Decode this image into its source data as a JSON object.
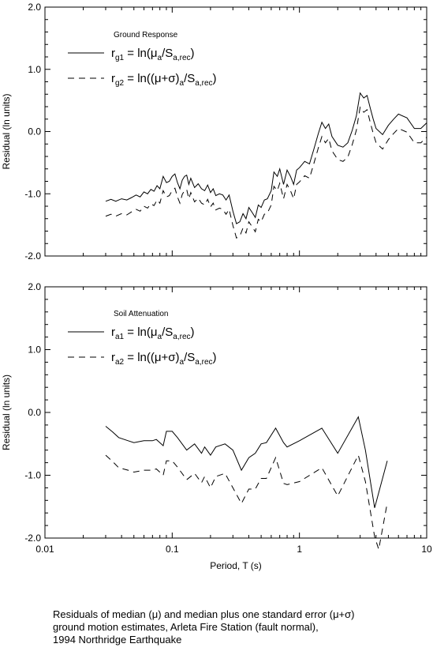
{
  "caption": {
    "line1": "Residuals of median (μ) and median plus one standard error (μ+σ)",
    "line2": "ground motion estimates, Arleta Fire Station (fault normal),",
    "line3": "1994 Northridge Earthquake"
  },
  "colors": {
    "line": "#000000",
    "frame": "#000000",
    "background": "#ffffff"
  },
  "chart_data": [
    {
      "type": "line",
      "panel": "top",
      "legend_title": "Ground Response",
      "legend": [
        {
          "main": "r",
          "sub": "g1",
          "expr_a": " = ln(μ",
          "sub_a": "a",
          "expr_b": "/S",
          "sub_b": "a,rec",
          "expr_c": ")",
          "style": "solid"
        },
        {
          "main": "r",
          "sub": "g2",
          "expr_a": " = ln((μ+σ)",
          "sub_a": "a",
          "expr_b": "/S",
          "sub_b": "a,rec",
          "expr_c": ")",
          "style": "dashed"
        }
      ],
      "ylabel": "Residual (ln units)",
      "xlabel": "",
      "xscale": "log",
      "xlim": [
        0.01,
        10
      ],
      "ylim": [
        -2.0,
        2.0
      ],
      "yticks": [
        "2.0",
        "1.0",
        "0.0",
        "-1.0",
        "-2.0"
      ],
      "xticks": [],
      "series": [
        {
          "style": "solid",
          "x": [
            0.03,
            0.033,
            0.036,
            0.04,
            0.044,
            0.048,
            0.052,
            0.056,
            0.06,
            0.064,
            0.068,
            0.072,
            0.076,
            0.08,
            0.085,
            0.09,
            0.095,
            0.1,
            0.105,
            0.11,
            0.115,
            0.12,
            0.125,
            0.13,
            0.135,
            0.14,
            0.15,
            0.16,
            0.17,
            0.18,
            0.19,
            0.2,
            0.21,
            0.22,
            0.235,
            0.25,
            0.265,
            0.28,
            0.3,
            0.32,
            0.34,
            0.36,
            0.38,
            0.4,
            0.425,
            0.45,
            0.475,
            0.5,
            0.53,
            0.56,
            0.6,
            0.63,
            0.67,
            0.7,
            0.75,
            0.8,
            0.85,
            0.9,
            0.95,
            1.0,
            1.1,
            1.2,
            1.3,
            1.4,
            1.5,
            1.6,
            1.7,
            1.8,
            1.9,
            2.0,
            2.2,
            2.4,
            2.6,
            2.8,
            3.0,
            3.2,
            3.4,
            3.6,
            3.8,
            4.0,
            4.5,
            5.0,
            5.5,
            6.0,
            7.0,
            8.0,
            9.0,
            10.0
          ],
          "y": [
            -1.12,
            -1.09,
            -1.12,
            -1.08,
            -1.1,
            -1.06,
            -1.02,
            -1.05,
            -0.97,
            -1.0,
            -0.93,
            -0.96,
            -0.87,
            -0.92,
            -0.72,
            -0.82,
            -0.8,
            -0.72,
            -0.68,
            -0.82,
            -0.92,
            -0.78,
            -0.72,
            -0.7,
            -0.85,
            -0.75,
            -0.9,
            -0.84,
            -0.92,
            -0.95,
            -0.86,
            -0.98,
            -0.92,
            -1.03,
            -1.0,
            -1.02,
            -1.1,
            -1.02,
            -1.28,
            -1.48,
            -1.45,
            -1.32,
            -1.4,
            -1.22,
            -1.3,
            -1.38,
            -1.18,
            -1.22,
            -1.1,
            -1.08,
            -0.95,
            -0.65,
            -0.72,
            -0.6,
            -0.85,
            -0.62,
            -0.72,
            -0.85,
            -0.62,
            -0.58,
            -0.48,
            -0.52,
            -0.28,
            -0.05,
            0.15,
            0.05,
            0.12,
            -0.08,
            -0.15,
            -0.22,
            -0.25,
            -0.18,
            0.02,
            0.25,
            0.62,
            0.54,
            0.58,
            0.38,
            0.2,
            0.05,
            -0.05,
            0.1,
            0.2,
            0.28,
            0.22,
            0.05,
            0.05,
            0.14
          ]
        },
        {
          "style": "dashed",
          "x": [
            0.03,
            0.033,
            0.036,
            0.04,
            0.044,
            0.048,
            0.052,
            0.056,
            0.06,
            0.064,
            0.068,
            0.072,
            0.076,
            0.08,
            0.085,
            0.09,
            0.095,
            0.1,
            0.105,
            0.11,
            0.115,
            0.12,
            0.125,
            0.13,
            0.135,
            0.14,
            0.15,
            0.16,
            0.17,
            0.18,
            0.19,
            0.2,
            0.21,
            0.22,
            0.235,
            0.25,
            0.265,
            0.28,
            0.3,
            0.32,
            0.34,
            0.36,
            0.38,
            0.4,
            0.425,
            0.45,
            0.475,
            0.5,
            0.53,
            0.56,
            0.6,
            0.63,
            0.67,
            0.7,
            0.75,
            0.8,
            0.85,
            0.9,
            0.95,
            1.0,
            1.1,
            1.2,
            1.3,
            1.4,
            1.5,
            1.6,
            1.7,
            1.8,
            1.9,
            2.0,
            2.2,
            2.4,
            2.6,
            2.8,
            3.0,
            3.2,
            3.4,
            3.6,
            3.8,
            4.0,
            4.5,
            5.0,
            5.5,
            6.0,
            7.0,
            8.0,
            9.0,
            10.0
          ],
          "y": [
            -1.36,
            -1.33,
            -1.36,
            -1.32,
            -1.34,
            -1.29,
            -1.25,
            -1.28,
            -1.2,
            -1.23,
            -1.16,
            -1.19,
            -1.1,
            -1.15,
            -0.95,
            -1.05,
            -1.03,
            -0.95,
            -0.91,
            -1.05,
            -1.15,
            -1.01,
            -0.95,
            -0.93,
            -1.08,
            -0.98,
            -1.13,
            -1.07,
            -1.15,
            -1.18,
            -1.09,
            -1.21,
            -1.15,
            -1.26,
            -1.23,
            -1.25,
            -1.33,
            -1.25,
            -1.51,
            -1.71,
            -1.68,
            -1.55,
            -1.63,
            -1.45,
            -1.53,
            -1.61,
            -1.41,
            -1.45,
            -1.33,
            -1.31,
            -1.18,
            -0.88,
            -0.95,
            -0.83,
            -1.08,
            -0.85,
            -0.95,
            -1.08,
            -0.85,
            -0.81,
            -0.71,
            -0.75,
            -0.51,
            -0.28,
            -0.08,
            -0.18,
            -0.11,
            -0.31,
            -0.38,
            -0.45,
            -0.48,
            -0.41,
            -0.21,
            0.02,
            0.39,
            0.31,
            0.35,
            0.15,
            -0.03,
            -0.18,
            -0.28,
            -0.13,
            -0.03,
            0.05,
            -0.01,
            -0.18,
            -0.18,
            -0.09
          ]
        }
      ]
    },
    {
      "type": "line",
      "panel": "bottom",
      "legend_title": "Soil Attenuation",
      "legend": [
        {
          "main": "r",
          "sub": "a1",
          "expr_a": " = ln(μ",
          "sub_a": "a",
          "expr_b": "/S",
          "sub_b": "a,rec",
          "expr_c": ")",
          "style": "solid"
        },
        {
          "main": "r",
          "sub": "a2",
          "expr_a": " = ln((μ+σ)",
          "sub_a": "a",
          "expr_b": "/S",
          "sub_b": "a,rec",
          "expr_c": ")",
          "style": "dashed"
        }
      ],
      "ylabel": "Residual (ln units)",
      "xlabel": "Period, T (s)",
      "xscale": "log",
      "xlim": [
        0.01,
        10
      ],
      "ylim": [
        -2.0,
        2.0
      ],
      "yticks": [
        "2.0",
        "1.0",
        "0.0",
        "-1.0",
        "-2.0"
      ],
      "xticks": [
        "0.01",
        "0.1",
        "1",
        "10"
      ],
      "series": [
        {
          "style": "solid",
          "x": [
            0.03,
            0.034,
            0.038,
            0.045,
            0.05,
            0.06,
            0.07,
            0.075,
            0.085,
            0.09,
            0.1,
            0.11,
            0.13,
            0.15,
            0.17,
            0.18,
            0.2,
            0.22,
            0.26,
            0.3,
            0.35,
            0.4,
            0.45,
            0.5,
            0.55,
            0.65,
            0.75,
            0.8,
            1.0,
            1.5,
            2.0,
            2.9,
            3.3,
            3.9,
            4.9
          ],
          "y": [
            -0.22,
            -0.31,
            -0.4,
            -0.45,
            -0.48,
            -0.45,
            -0.45,
            -0.43,
            -0.53,
            -0.3,
            -0.3,
            -0.4,
            -0.6,
            -0.5,
            -0.65,
            -0.55,
            -0.68,
            -0.55,
            -0.5,
            -0.6,
            -0.92,
            -0.72,
            -0.65,
            -0.5,
            -0.48,
            -0.25,
            -0.48,
            -0.55,
            -0.45,
            -0.25,
            -0.65,
            -0.07,
            -0.6,
            -1.52,
            -0.77
          ]
        },
        {
          "style": "dashed",
          "x": [
            0.03,
            0.034,
            0.038,
            0.045,
            0.05,
            0.06,
            0.07,
            0.075,
            0.085,
            0.09,
            0.1,
            0.11,
            0.13,
            0.15,
            0.17,
            0.18,
            0.2,
            0.22,
            0.26,
            0.3,
            0.35,
            0.4,
            0.45,
            0.5,
            0.55,
            0.65,
            0.75,
            0.8,
            1.0,
            1.5,
            2.0,
            2.9,
            3.3,
            3.9,
            4.2,
            4.9
          ],
          "y": [
            -0.68,
            -0.78,
            -0.88,
            -0.92,
            -0.95,
            -0.92,
            -0.92,
            -0.9,
            -1.0,
            -0.77,
            -0.77,
            -0.87,
            -1.07,
            -0.97,
            -1.12,
            -1.02,
            -1.2,
            -1.02,
            -0.97,
            -1.2,
            -1.45,
            -1.22,
            -1.22,
            -1.05,
            -1.05,
            -0.72,
            -1.13,
            -1.15,
            -1.1,
            -0.88,
            -1.33,
            -0.68,
            -1.1,
            -1.98,
            -2.18,
            -1.44
          ]
        }
      ]
    }
  ]
}
